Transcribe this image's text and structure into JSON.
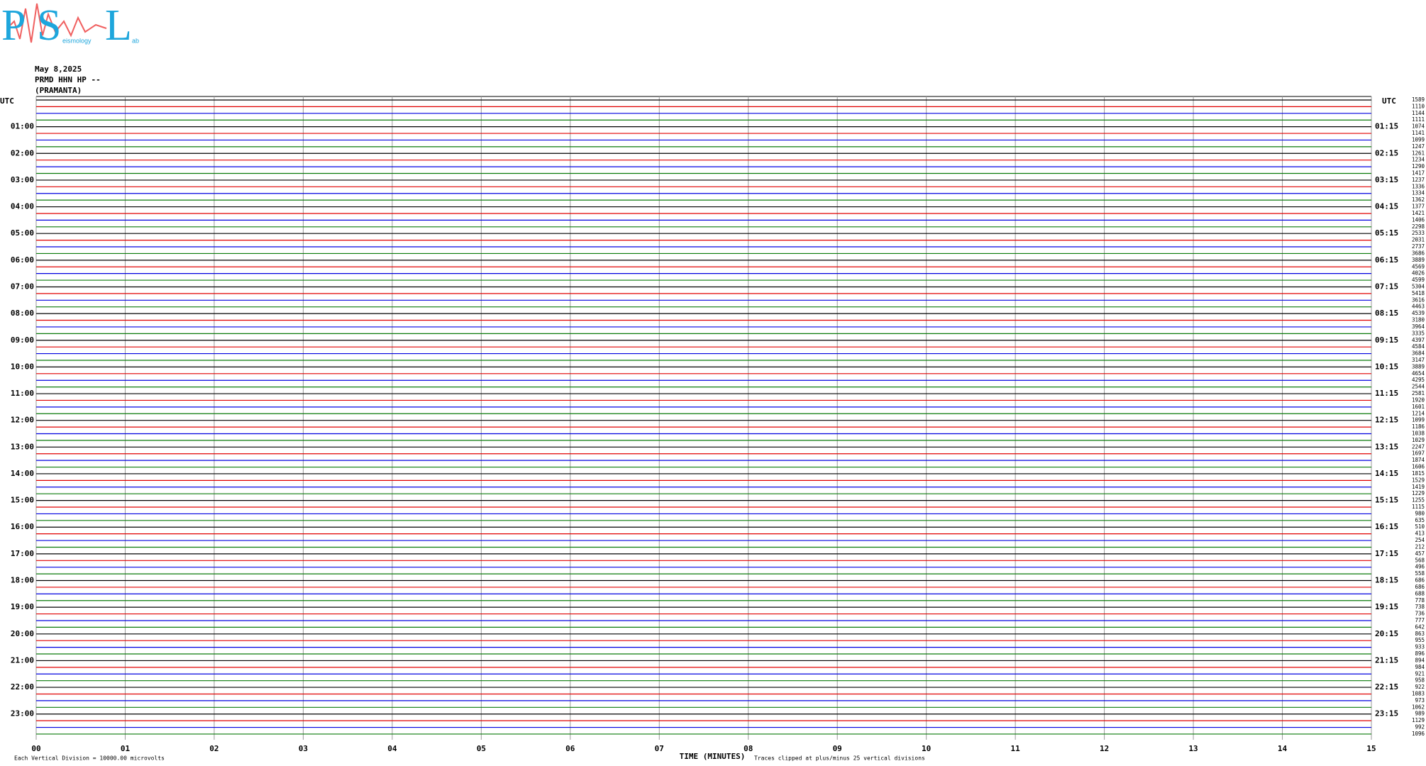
{
  "chart_data": {
    "type": "helicorder",
    "logo": {
      "p": "P",
      "s": "S",
      "l": "L",
      "mid": "eismology",
      "end": "ab"
    },
    "date": "May 8,2025",
    "station": "PRMD HHN HP --",
    "location": "(PRAMANTA)",
    "left_header": "UTC",
    "right_header": "UTC",
    "left_labels": [
      "01:00",
      "02:00",
      "03:00",
      "04:00",
      "05:00",
      "06:00",
      "07:00",
      "08:00",
      "09:00",
      "10:00",
      "11:00",
      "12:00",
      "13:00",
      "14:00",
      "15:00",
      "16:00",
      "17:00",
      "18:00",
      "19:00",
      "20:00",
      "21:00",
      "22:00",
      "23:00"
    ],
    "right_labels": [
      "01:15",
      "02:15",
      "03:15",
      "04:15",
      "05:15",
      "06:15",
      "07:15",
      "08:15",
      "09:15",
      "10:15",
      "11:15",
      "12:15",
      "13:15",
      "14:15",
      "15:15",
      "16:15",
      "17:15",
      "18:15",
      "19:15",
      "20:15",
      "21:15",
      "22:15",
      "23:15"
    ],
    "trace_values": [
      1589,
      1110,
      1144,
      1111,
      1074,
      1141,
      1099,
      1247,
      1261,
      1234,
      1290,
      1417,
      1237,
      1336,
      1334,
      1362,
      1377,
      1421,
      1406,
      2298,
      2533,
      2031,
      2737,
      3686,
      3889,
      4569,
      4026,
      4599,
      5304,
      5418,
      3616,
      4463,
      4539,
      3180,
      3964,
      3335,
      4397,
      4584,
      3684,
      3147,
      3889,
      4654,
      4295,
      2544,
      2581,
      1920,
      1601,
      1214,
      1099,
      1186,
      1038,
      1029,
      2247,
      1697,
      1874,
      1606,
      1815,
      1529,
      1419,
      1229,
      1255,
      1115,
      980,
      635,
      510,
      413,
      254,
      212,
      457,
      568,
      496,
      558,
      686,
      686,
      688,
      778,
      738,
      736,
      777,
      642,
      863,
      955,
      933,
      896,
      894,
      984,
      921,
      958,
      922,
      1083,
      973,
      1062,
      989,
      1129,
      992,
      1096
    ],
    "trace_colors": [
      "#000000",
      "#e00000",
      "#0000e0",
      "#0a7a0a"
    ],
    "xlim": [
      0,
      15
    ],
    "xticks": [
      {
        "value": 0,
        "label": "00"
      },
      {
        "value": 1,
        "label": "01"
      },
      {
        "value": 2,
        "label": "02"
      },
      {
        "value": 3,
        "label": "03"
      },
      {
        "value": 4,
        "label": "04"
      },
      {
        "value": 5,
        "label": "05"
      },
      {
        "value": 6,
        "label": "06"
      },
      {
        "value": 7,
        "label": "07"
      },
      {
        "value": 8,
        "label": "08"
      },
      {
        "value": 9,
        "label": "09"
      },
      {
        "value": 10,
        "label": "10"
      },
      {
        "value": 11,
        "label": "11"
      },
      {
        "value": 12,
        "label": "12"
      },
      {
        "value": 13,
        "label": "13"
      },
      {
        "value": 14,
        "label": "14"
      },
      {
        "value": 15,
        "label": "15"
      }
    ],
    "xlabel": "TIME (MINUTES)",
    "scale_note": "Each Vertical Division = 10000.00 microvolts",
    "clip_note": "Traces clipped at plus/minus 25 vertical divisions",
    "grid": true
  }
}
